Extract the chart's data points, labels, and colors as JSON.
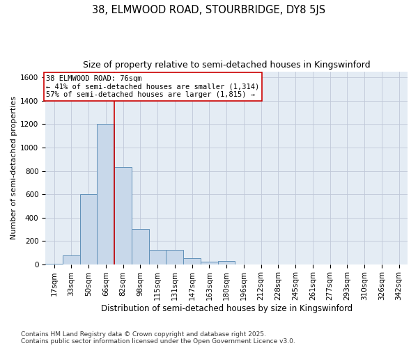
{
  "title1": "38, ELMWOOD ROAD, STOURBRIDGE, DY8 5JS",
  "title2": "Size of property relative to semi-detached houses in Kingswinford",
  "xlabel": "Distribution of semi-detached houses by size in Kingswinford",
  "ylabel": "Number of semi-detached properties",
  "categories": [
    "17sqm",
    "33sqm",
    "50sqm",
    "66sqm",
    "82sqm",
    "98sqm",
    "115sqm",
    "131sqm",
    "147sqm",
    "163sqm",
    "180sqm",
    "196sqm",
    "212sqm",
    "228sqm",
    "245sqm",
    "261sqm",
    "277sqm",
    "293sqm",
    "310sqm",
    "326sqm",
    "342sqm"
  ],
  "values": [
    5,
    75,
    600,
    1200,
    830,
    300,
    120,
    120,
    50,
    20,
    30,
    0,
    0,
    0,
    0,
    0,
    0,
    0,
    0,
    0,
    0
  ],
  "bar_color": "#c8d8ea",
  "bar_edge_color": "#6090b8",
  "grid_color": "#c0c8d8",
  "bg_color": "#e4ecf4",
  "vline_color": "#cc0000",
  "annotation_text": "38 ELMWOOD ROAD: 76sqm\n← 41% of semi-detached houses are smaller (1,314)\n57% of semi-detached houses are larger (1,815) →",
  "annotation_box_color": "white",
  "annotation_box_edge": "#cc0000",
  "ylim": [
    0,
    1650
  ],
  "yticks": [
    0,
    200,
    400,
    600,
    800,
    1000,
    1200,
    1400,
    1600
  ],
  "footer": "Contains HM Land Registry data © Crown copyright and database right 2025.\nContains public sector information licensed under the Open Government Licence v3.0.",
  "title1_fontsize": 10.5,
  "title2_fontsize": 9,
  "xlabel_fontsize": 8.5,
  "ylabel_fontsize": 8,
  "tick_fontsize": 7.5,
  "annotation_fontsize": 7.5,
  "footer_fontsize": 6.5
}
